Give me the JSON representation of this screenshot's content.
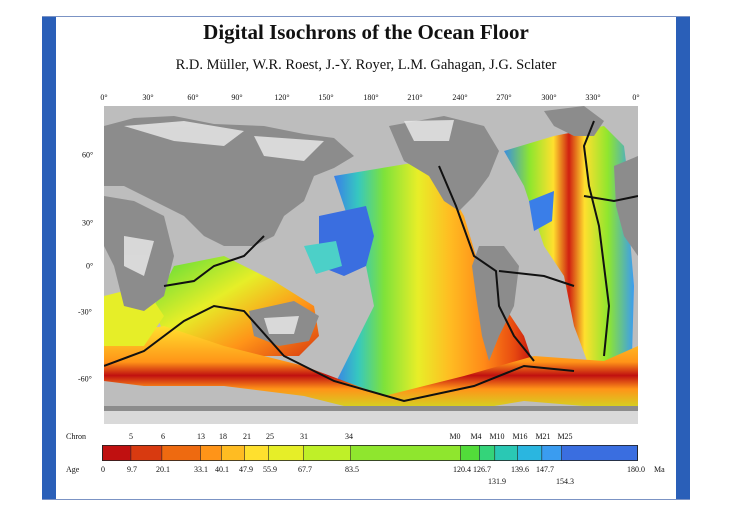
{
  "header": {
    "title": "Digital Isochrons of the Ocean Floor",
    "authors": "R.D. Müller, W.R. Roest, J.-Y. Royer, L.M. Gahagan, J.G. Sclater"
  },
  "map": {
    "longitude_labels": [
      "0°",
      "30°",
      "60°",
      "90°",
      "120°",
      "150°",
      "180°",
      "210°",
      "240°",
      "270°",
      "300°",
      "330°",
      "0°"
    ],
    "latitude_labels": [
      "60°",
      "30°",
      "0°",
      "-30°",
      "-60°"
    ],
    "colors": {
      "land": "#8c8c8c",
      "land_highlight": "#e6e6e6",
      "ocean_unknown": "#b9b9b9",
      "ridge": "#111111",
      "frame": "#2a5fb8"
    }
  },
  "legend": {
    "chron_title": "Chron",
    "chron_labels": [
      "5",
      "6",
      "13",
      "18",
      "21",
      "25",
      "31",
      "34",
      "M0",
      "M4",
      "M10",
      "M16",
      "M21",
      "M25"
    ],
    "age_title": "Age",
    "age_labels_top": [
      "0",
      "9.7",
      "20.1",
      "33.1",
      "40.1",
      "47.9",
      "55.9",
      "67.7",
      "83.5",
      "120.4",
      "126.7",
      "139.6",
      "147.7",
      "180.0"
    ],
    "age_labels_bottom": [
      "131.9",
      "154.3"
    ],
    "age_unit": "Ma",
    "age_values": [
      0,
      9.7,
      20.1,
      33.1,
      40.1,
      47.9,
      55.9,
      67.7,
      83.5,
      120.4,
      126.7,
      131.9,
      139.6,
      147.7,
      154.3,
      180.0
    ],
    "age_colors": [
      "#c01010",
      "#d83a10",
      "#ee6a10",
      "#ff9418",
      "#ffbc22",
      "#ffe02e",
      "#e6ee28",
      "#bff028",
      "#8fe62e",
      "#52dc3a",
      "#34d47a",
      "#2ac8b4",
      "#2ab6e0",
      "#3a9cf0",
      "#3a6ee0"
    ]
  }
}
